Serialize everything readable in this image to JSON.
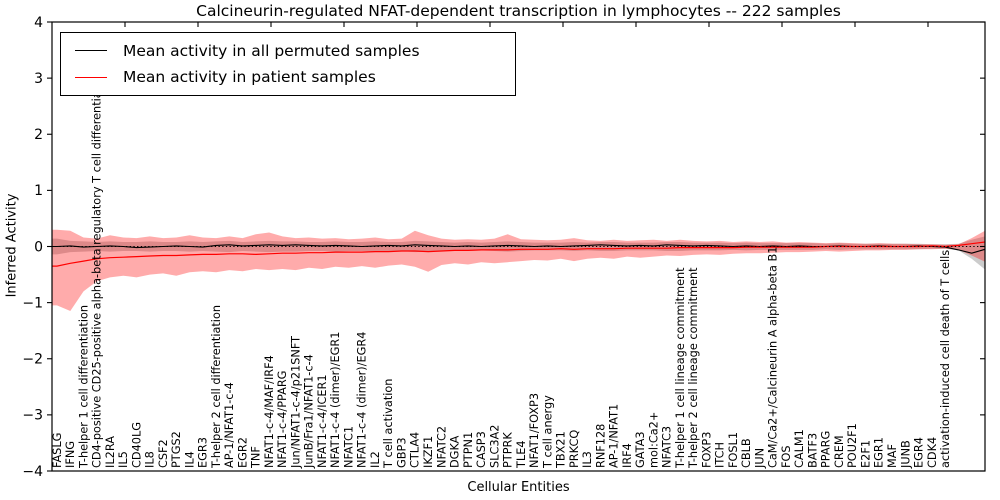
{
  "chart_data": {
    "type": "line",
    "title": "Calcineurin-regulated NFAT-dependent transcription in lymphocytes -- 222 samples",
    "xlabel": "Cellular Entities",
    "ylabel": "Inferred Activity",
    "ylim": [
      -4,
      4
    ],
    "ytick_values": [
      -4,
      -3,
      -2,
      -1,
      0,
      1,
      2,
      3,
      4
    ],
    "ytick_labels": [
      "−4",
      "−3",
      "−2",
      "−1",
      "0",
      "1",
      "2",
      "3",
      "4"
    ],
    "grid": false,
    "legend_position": "upper left",
    "categories": [
      "FASLG",
      "IFNG",
      "T-helper 1 cell differentiation",
      "CD4-positive CD25-positive alpha-beta regulatory T cell differentiation",
      "IL2RA",
      "IL5",
      "CD40LG",
      "IL8",
      "CSF2",
      "PTGS2",
      "IL4",
      "EGR3",
      "T-helper 2 cell differentiation",
      "AP-1/NFAT1-c-4",
      "EGR2",
      "TNF",
      "NFAT1-c-4/MAF/IRF4",
      "NFAT1-c-4/PPARG",
      "Jun/NFAT1-c-4/p21SNFT",
      "JunB/Fra1/NFAT1-c-4",
      "NFAT1-c-4/ICER1",
      "NFAT1-c-4 (dimer)/EGR1",
      "NFATC1",
      "NFAT1-c-4 (dimer)/EGR4",
      "IL2",
      "T cell activation",
      "GBP3",
      "CTLA4",
      "IKZF1",
      "NFATC2",
      "DGKA",
      "PTPN1",
      "CASP3",
      "SLC3A2",
      "PTPRK",
      "TLE4",
      "NFAT1/FOXP3",
      "T cell anergy",
      "TBX21",
      "PRKCQ",
      "IL3",
      "RNF128",
      "AP-1/NFAT1",
      "IRF4",
      "GATA3",
      "mol:Ca2+",
      "NFATC3",
      "T-helper 1 cell lineage commitment",
      "T-helper 2 cell lineage commitment",
      "FOXP3",
      "ITCH",
      "FOSL1",
      "CBLB",
      "JUN",
      "CaM/Ca2+/Calcineurin A alpha-beta B1",
      "FOS",
      "CALM1",
      "BATF3",
      "PPARG",
      "CREM",
      "POU2F1",
      "E2F1",
      "EGR1",
      "MAF",
      "JUNB",
      "EGR4",
      "CDK4",
      "activation-induced cell death of T cells",
      "",
      "",
      ""
    ],
    "legend": [
      {
        "label": "Mean activity in all permuted samples",
        "color": "#000000"
      },
      {
        "label": "Mean activity in patient samples",
        "color": "#ff0000"
      }
    ],
    "series": [
      {
        "name": "Mean activity in all permuted samples",
        "color": "#000000",
        "values": [
          0.0,
          0.01,
          -0.01,
          0.0,
          0.01,
          0.0,
          -0.02,
          -0.01,
          0.0,
          0.01,
          0.0,
          -0.01,
          0.02,
          0.03,
          0.01,
          0.02,
          0.03,
          0.02,
          0.03,
          0.02,
          0.01,
          0.02,
          0.01,
          0.0,
          0.01,
          0.02,
          0.01,
          0.03,
          0.02,
          0.01,
          0.0,
          0.01,
          0.0,
          0.01,
          0.02,
          0.01,
          0.0,
          0.01,
          0.0,
          0.01,
          0.02,
          0.03,
          0.02,
          0.01,
          0.02,
          0.01,
          0.03,
          0.02,
          0.01,
          0.02,
          0.01,
          0.0,
          0.01,
          0.0,
          0.01,
          0.0,
          0.01,
          0.0,
          0.0,
          0.01,
          0.0,
          0.0,
          0.01,
          0.0,
          0.0,
          0.01,
          0.0,
          -0.01,
          -0.06,
          -0.12,
          -0.05
        ]
      },
      {
        "name": "Mean activity in patient samples",
        "color": "#ff0000",
        "values": [
          -0.35,
          -0.3,
          -0.26,
          -0.22,
          -0.2,
          -0.19,
          -0.18,
          -0.17,
          -0.16,
          -0.16,
          -0.15,
          -0.14,
          -0.14,
          -0.13,
          -0.13,
          -0.14,
          -0.13,
          -0.12,
          -0.12,
          -0.11,
          -0.11,
          -0.1,
          -0.1,
          -0.1,
          -0.09,
          -0.09,
          -0.08,
          -0.08,
          -0.09,
          -0.08,
          -0.07,
          -0.07,
          -0.06,
          -0.06,
          -0.06,
          -0.05,
          -0.05,
          -0.05,
          -0.04,
          -0.05,
          -0.04,
          -0.04,
          -0.04,
          -0.03,
          -0.03,
          -0.03,
          -0.03,
          -0.02,
          -0.02,
          -0.02,
          -0.02,
          -0.02,
          -0.01,
          -0.01,
          -0.01,
          -0.01,
          -0.01,
          -0.01,
          0.0,
          0.0,
          0.0,
          0.0,
          0.0,
          0.0,
          0.0,
          0.0,
          0.01,
          0.0,
          0.02,
          0.05,
          0.08
        ]
      }
    ],
    "bands": [
      {
        "name": "permuted-samples-band",
        "color": "#808080",
        "opacity": 0.4,
        "upper": [
          0.14,
          0.1,
          0.09,
          0.08,
          0.09,
          0.08,
          0.08,
          0.09,
          0.08,
          0.08,
          0.09,
          0.08,
          0.09,
          0.1,
          0.08,
          0.09,
          0.1,
          0.09,
          0.09,
          0.08,
          0.08,
          0.09,
          0.08,
          0.08,
          0.09,
          0.08,
          0.08,
          0.1,
          0.09,
          0.08,
          0.07,
          0.08,
          0.07,
          0.08,
          0.09,
          0.08,
          0.07,
          0.07,
          0.07,
          0.08,
          0.07,
          0.08,
          0.08,
          0.07,
          0.07,
          0.07,
          0.08,
          0.08,
          0.07,
          0.07,
          0.07,
          0.06,
          0.07,
          0.06,
          0.06,
          0.06,
          0.06,
          0.06,
          0.05,
          0.06,
          0.05,
          0.05,
          0.05,
          0.05,
          0.05,
          0.05,
          0.04,
          0.04,
          0.05,
          0.12,
          0.18
        ],
        "lower": [
          -0.14,
          -0.1,
          -0.09,
          -0.08,
          -0.09,
          -0.08,
          -0.08,
          -0.09,
          -0.08,
          -0.08,
          -0.09,
          -0.08,
          -0.09,
          -0.1,
          -0.08,
          -0.09,
          -0.1,
          -0.09,
          -0.09,
          -0.08,
          -0.08,
          -0.09,
          -0.08,
          -0.08,
          -0.09,
          -0.08,
          -0.08,
          -0.1,
          -0.09,
          -0.08,
          -0.07,
          -0.08,
          -0.07,
          -0.08,
          -0.09,
          -0.08,
          -0.07,
          -0.07,
          -0.07,
          -0.08,
          -0.07,
          -0.08,
          -0.08,
          -0.07,
          -0.07,
          -0.07,
          -0.08,
          -0.08,
          -0.07,
          -0.07,
          -0.07,
          -0.06,
          -0.07,
          -0.06,
          -0.06,
          -0.06,
          -0.06,
          -0.06,
          -0.05,
          -0.06,
          -0.05,
          -0.05,
          -0.05,
          -0.05,
          -0.05,
          -0.05,
          -0.04,
          -0.04,
          -0.07,
          -0.22,
          -0.41
        ]
      },
      {
        "name": "patient-samples-band",
        "color": "#ff0000",
        "opacity": 0.33,
        "upper": [
          0.3,
          0.28,
          0.16,
          0.14,
          0.2,
          0.16,
          0.15,
          0.18,
          0.15,
          0.16,
          0.2,
          0.16,
          0.15,
          0.18,
          0.15,
          0.22,
          0.25,
          0.18,
          0.15,
          0.16,
          0.14,
          0.15,
          0.13,
          0.14,
          0.16,
          0.13,
          0.14,
          0.28,
          0.2,
          0.14,
          0.12,
          0.13,
          0.12,
          0.14,
          0.22,
          0.13,
          0.12,
          0.11,
          0.12,
          0.15,
          0.11,
          0.1,
          0.12,
          0.1,
          0.11,
          0.12,
          0.1,
          0.12,
          0.1,
          0.09,
          0.1,
          0.08,
          0.09,
          0.08,
          0.09,
          0.07,
          0.08,
          0.07,
          0.06,
          0.07,
          0.06,
          0.05,
          0.06,
          0.05,
          0.05,
          0.04,
          0.04,
          0.03,
          0.04,
          0.15,
          0.28
        ],
        "lower": [
          -1.05,
          -1.15,
          -0.8,
          -0.62,
          -0.55,
          -0.52,
          -0.55,
          -0.5,
          -0.48,
          -0.52,
          -0.46,
          -0.44,
          -0.46,
          -0.42,
          -0.44,
          -0.4,
          -0.42,
          -0.4,
          -0.42,
          -0.38,
          -0.4,
          -0.36,
          -0.38,
          -0.35,
          -0.38,
          -0.34,
          -0.32,
          -0.36,
          -0.45,
          -0.33,
          -0.3,
          -0.32,
          -0.28,
          -0.3,
          -0.28,
          -0.26,
          -0.24,
          -0.25,
          -0.22,
          -0.26,
          -0.22,
          -0.2,
          -0.22,
          -0.18,
          -0.2,
          -0.18,
          -0.16,
          -0.17,
          -0.15,
          -0.14,
          -0.15,
          -0.13,
          -0.12,
          -0.12,
          -0.11,
          -0.1,
          -0.1,
          -0.09,
          -0.08,
          -0.09,
          -0.08,
          -0.07,
          -0.07,
          -0.06,
          -0.06,
          -0.05,
          -0.05,
          -0.04,
          -0.06,
          -0.16,
          -0.27
        ]
      }
    ],
    "zero_line": {
      "style": "dotted",
      "color": "#000000",
      "y": 0
    }
  }
}
